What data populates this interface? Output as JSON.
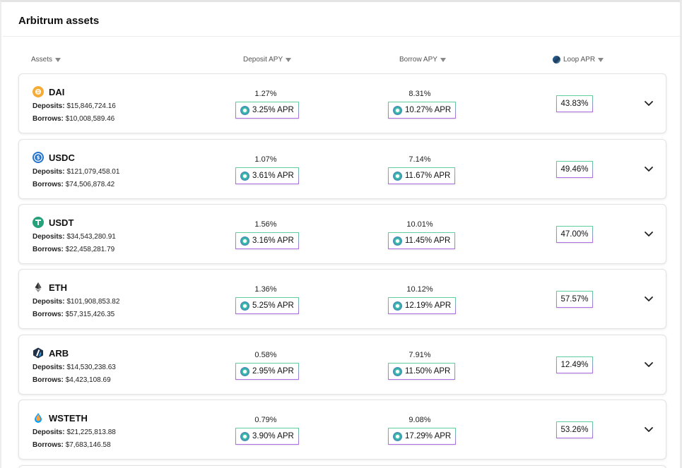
{
  "panel": {
    "title": "Arbitrum assets"
  },
  "columns": {
    "assets": "Assets",
    "deposit_apy": "Deposit APY",
    "borrow_apy": "Borrow APY",
    "loop_apr": "Loop APR"
  },
  "rows": [
    {
      "name": "DAI",
      "icon": "dai-icon",
      "icon_color": "#f5ac37",
      "deposits_label": "Deposits:",
      "deposits": "$15,846,724.16",
      "borrows_label": "Borrows:",
      "borrows": "$10,008,589.46",
      "deposit_apy": "1.27%",
      "deposit_apr": "3.25% APR",
      "borrow_apy": "8.31%",
      "borrow_apr": "10.27% APR",
      "loop_apr": "43.83%"
    },
    {
      "name": "USDC",
      "icon": "usdc-icon",
      "icon_color": "#2775ca",
      "deposits_label": "Deposits:",
      "deposits": "$121,079,458.01",
      "borrows_label": "Borrows:",
      "borrows": "$74,506,878.42",
      "deposit_apy": "1.07%",
      "deposit_apr": "3.61% APR",
      "borrow_apy": "7.14%",
      "borrow_apr": "11.67% APR",
      "loop_apr": "49.46%"
    },
    {
      "name": "USDT",
      "icon": "usdt-icon",
      "icon_color": "#26a17b",
      "deposits_label": "Deposits:",
      "deposits": "$34,543,280.91",
      "borrows_label": "Borrows:",
      "borrows": "$22,458,281.79",
      "deposit_apy": "1.56%",
      "deposit_apr": "3.16% APR",
      "borrow_apy": "10.01%",
      "borrow_apr": "11.45% APR",
      "loop_apr": "47.00%"
    },
    {
      "name": "ETH",
      "icon": "eth-icon",
      "icon_color": "#343434",
      "deposits_label": "Deposits:",
      "deposits": "$101,908,853.82",
      "borrows_label": "Borrows:",
      "borrows": "$57,315,426.35",
      "deposit_apy": "1.36%",
      "deposit_apr": "5.25% APR",
      "borrow_apy": "10.12%",
      "borrow_apr": "12.19% APR",
      "loop_apr": "57.57%"
    },
    {
      "name": "ARB",
      "icon": "arb-icon",
      "icon_color": "#213147",
      "deposits_label": "Deposits:",
      "deposits": "$14,530,238.63",
      "borrows_label": "Borrows:",
      "borrows": "$4,423,108.69",
      "deposit_apy": "0.58%",
      "deposit_apr": "2.95% APR",
      "borrow_apy": "7.91%",
      "borrow_apr": "11.50% APR",
      "loop_apr": "12.49%"
    },
    {
      "name": "WSTETH",
      "icon": "wsteth-icon",
      "icon_color": "#00a3ff",
      "deposits_label": "Deposits:",
      "deposits": "$21,225,813.88",
      "borrows_label": "Borrows:",
      "borrows": "$7,683,146.58",
      "deposit_apy": "0.79%",
      "deposit_apr": "3.90% APR",
      "borrow_apy": "9.08%",
      "borrow_apr": "17.29% APR",
      "loop_apr": "53.26%"
    }
  ]
}
